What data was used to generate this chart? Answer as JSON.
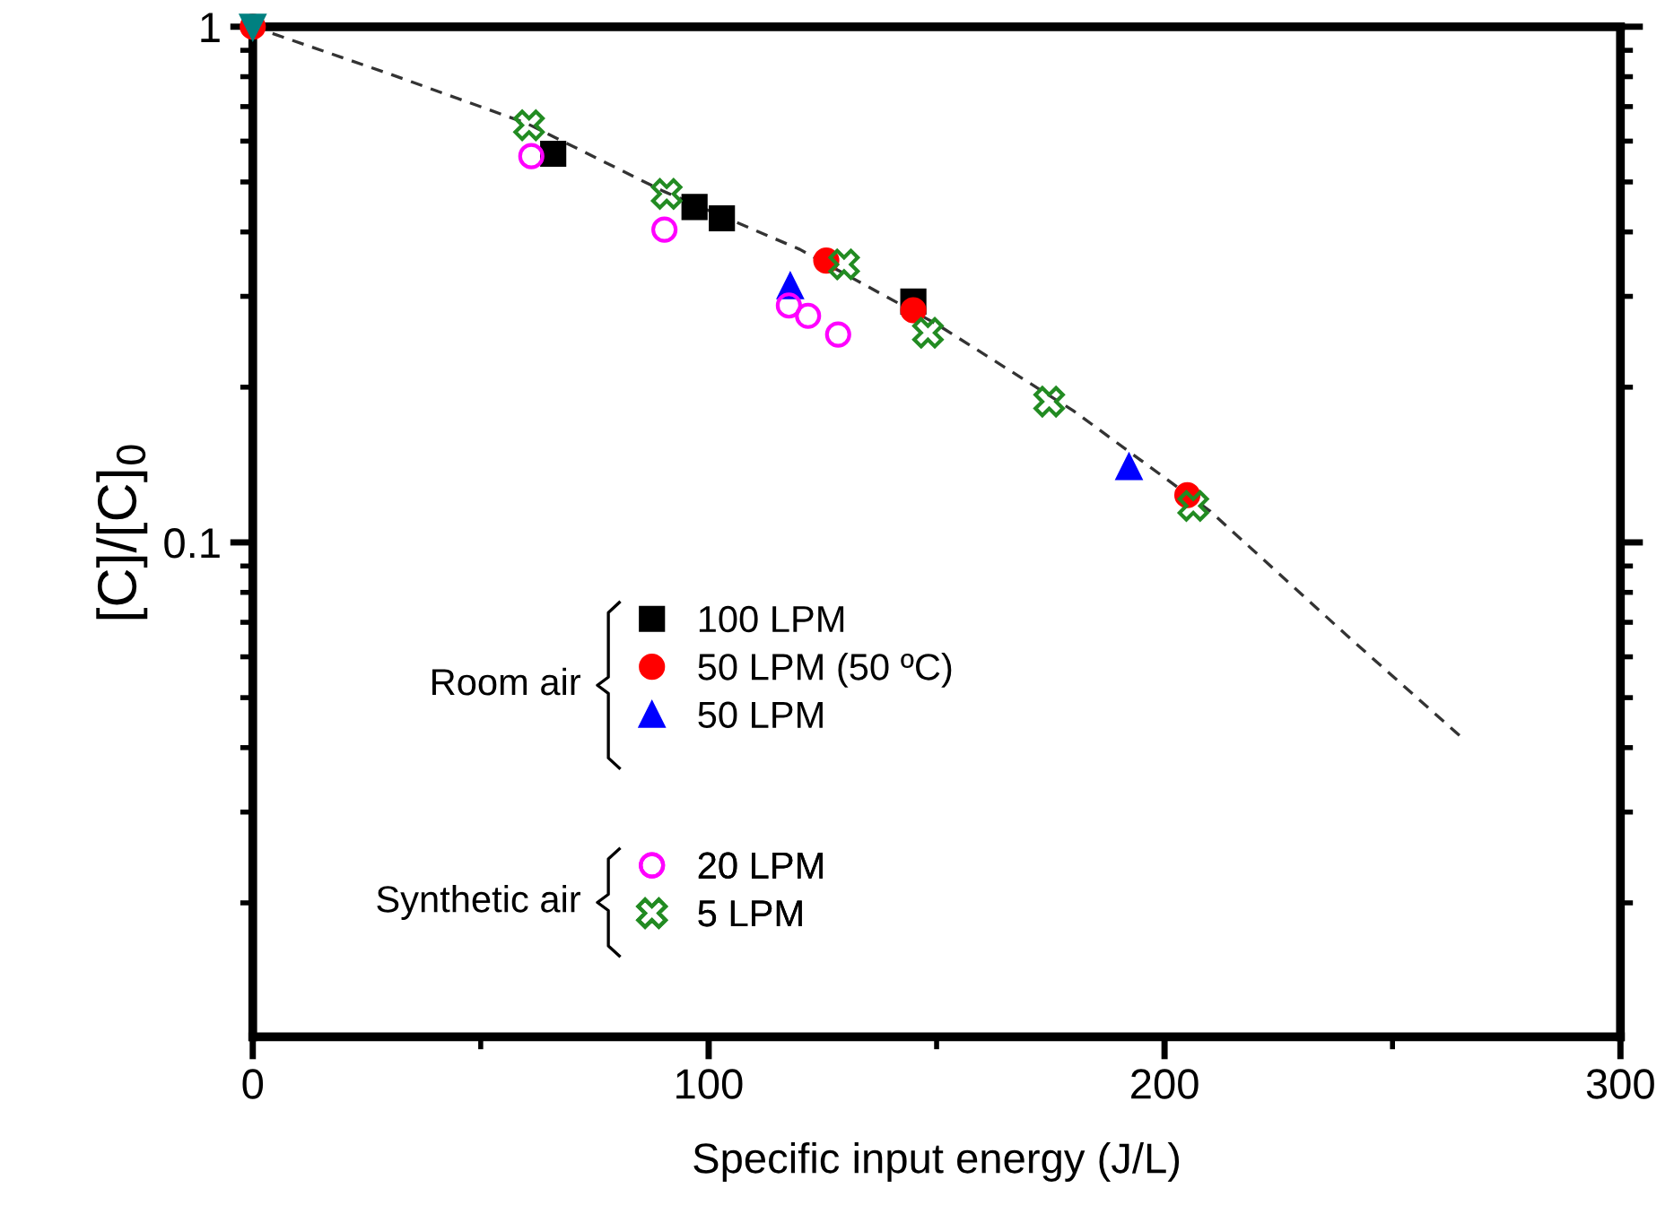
{
  "chart_data": {
    "type": "scatter",
    "xlabel": "Specific input energy (J/L)",
    "ylabel": "[C]/[C]$_{0}$",
    "log": "y",
    "xlim": [
      0,
      300
    ],
    "xticks": [
      0,
      100,
      200,
      300
    ],
    "ylim": [
      0.011,
      1
    ],
    "yticks": [
      {
        "value": 0.1,
        "label": "0.1"
      },
      1
    ],
    "grid": false,
    "legend": "center left",
    "annotations": [
      "Room air",
      "Synthetic air"
    ],
    "series": [
      {
        "name": "100 LPM",
        "color": "#000000",
        "marker": "square",
        "x": [
          65.9,
          96.9,
          102.9,
          144.9
        ],
        "values": [
          0.567,
          0.447,
          0.425,
          0.293
        ]
      },
      {
        "name": "50 LPM (50 ºC)",
        "color": "#ff0000",
        "marker": "circle",
        "x": [
          0,
          125.8,
          144.9,
          205.0
        ],
        "values": [
          1,
          0.352,
          0.282,
          0.1235
        ]
      },
      {
        "name": "50 LPM",
        "color": "#0000ff",
        "marker": "triangle",
        "x": [
          117.9,
          192.2
        ],
        "values": [
          0.314,
          0.14
        ]
      },
      {
        "name": "20 LPM",
        "color": "#ff00ff",
        "marker": "open_circle",
        "x": [
          61.1,
          90.3,
          117.6,
          121.8,
          128.4
        ],
        "values": [
          0.561,
          0.404,
          0.288,
          0.275,
          0.253
        ]
      },
      {
        "name": "5 LPM",
        "color": "#228b22",
        "marker": "cross",
        "x": [
          60.6,
          90.8,
          129.7,
          148.1,
          174.7,
          206.3
        ],
        "values": [
          0.644,
          0.474,
          0.346,
          0.255,
          0.1875,
          0.1177
        ]
      },
      {
        "color": "#008080",
        "marker": "triangle_down",
        "x": [
          0
        ],
        "values": [
          1
        ]
      },
      {
        "type": "line",
        "color": "#333333",
        "line_style": "dashed",
        "marker": "none",
        "x": [
          0,
          30,
          60,
          90,
          120,
          150,
          180,
          210,
          240,
          265
        ],
        "values": [
          1,
          0.81,
          0.65,
          0.48,
          0.37,
          0.265,
          0.18,
          0.115,
          0.066,
          0.042
        ]
      }
    ]
  }
}
